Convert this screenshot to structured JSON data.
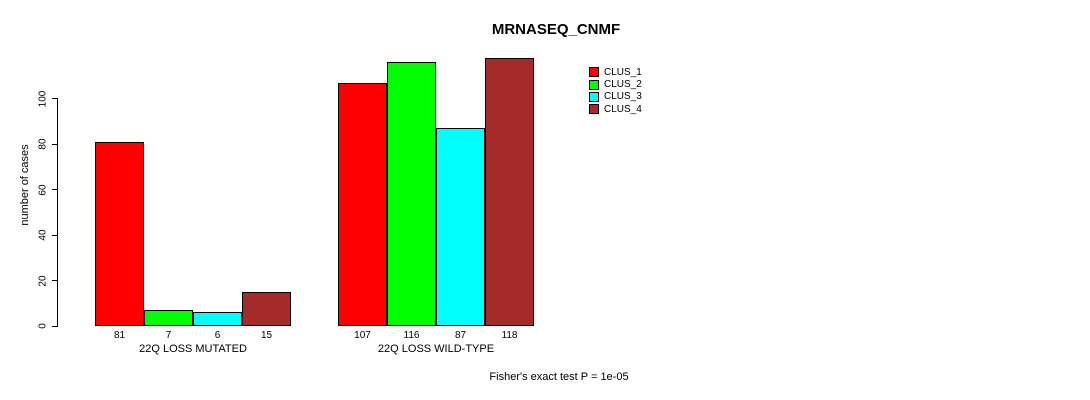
{
  "title": "MRNASEQ_CNMF",
  "footer": "Fisher's exact test P = 1e-05",
  "colors": {
    "clus_1": "#FF0000",
    "clus_2": "#00FF00",
    "clus_3": "#00FFFF",
    "clus_4": "#A52A2A",
    "axis": "#000000",
    "background": "#FFFFFF"
  },
  "chart_data": {
    "type": "bar",
    "title": "MRNASEQ_CNMF",
    "xlabel": "",
    "ylabel": "number of cases",
    "yticks": [
      0,
      20,
      40,
      60,
      80,
      100
    ],
    "ylim": [
      0,
      118
    ],
    "grid": false,
    "legend_position": "top-right",
    "categories": [
      "22Q LOSS MUTATED",
      "22Q LOSS WILD-TYPE"
    ],
    "series": [
      {
        "name": "CLUS_1",
        "color": "#FF0000",
        "values": [
          81,
          107
        ]
      },
      {
        "name": "CLUS_2",
        "color": "#00FF00",
        "values": [
          7,
          116
        ]
      },
      {
        "name": "CLUS_3",
        "color": "#00FFFF",
        "values": [
          6,
          87
        ]
      },
      {
        "name": "CLUS_4",
        "color": "#A52A2A",
        "values": [
          15,
          118
        ]
      }
    ],
    "bar_value_labels": [
      [
        81,
        7,
        6,
        15
      ],
      [
        107,
        116,
        87,
        118
      ]
    ],
    "annotation": "Fisher's exact test P = 1e-05"
  }
}
